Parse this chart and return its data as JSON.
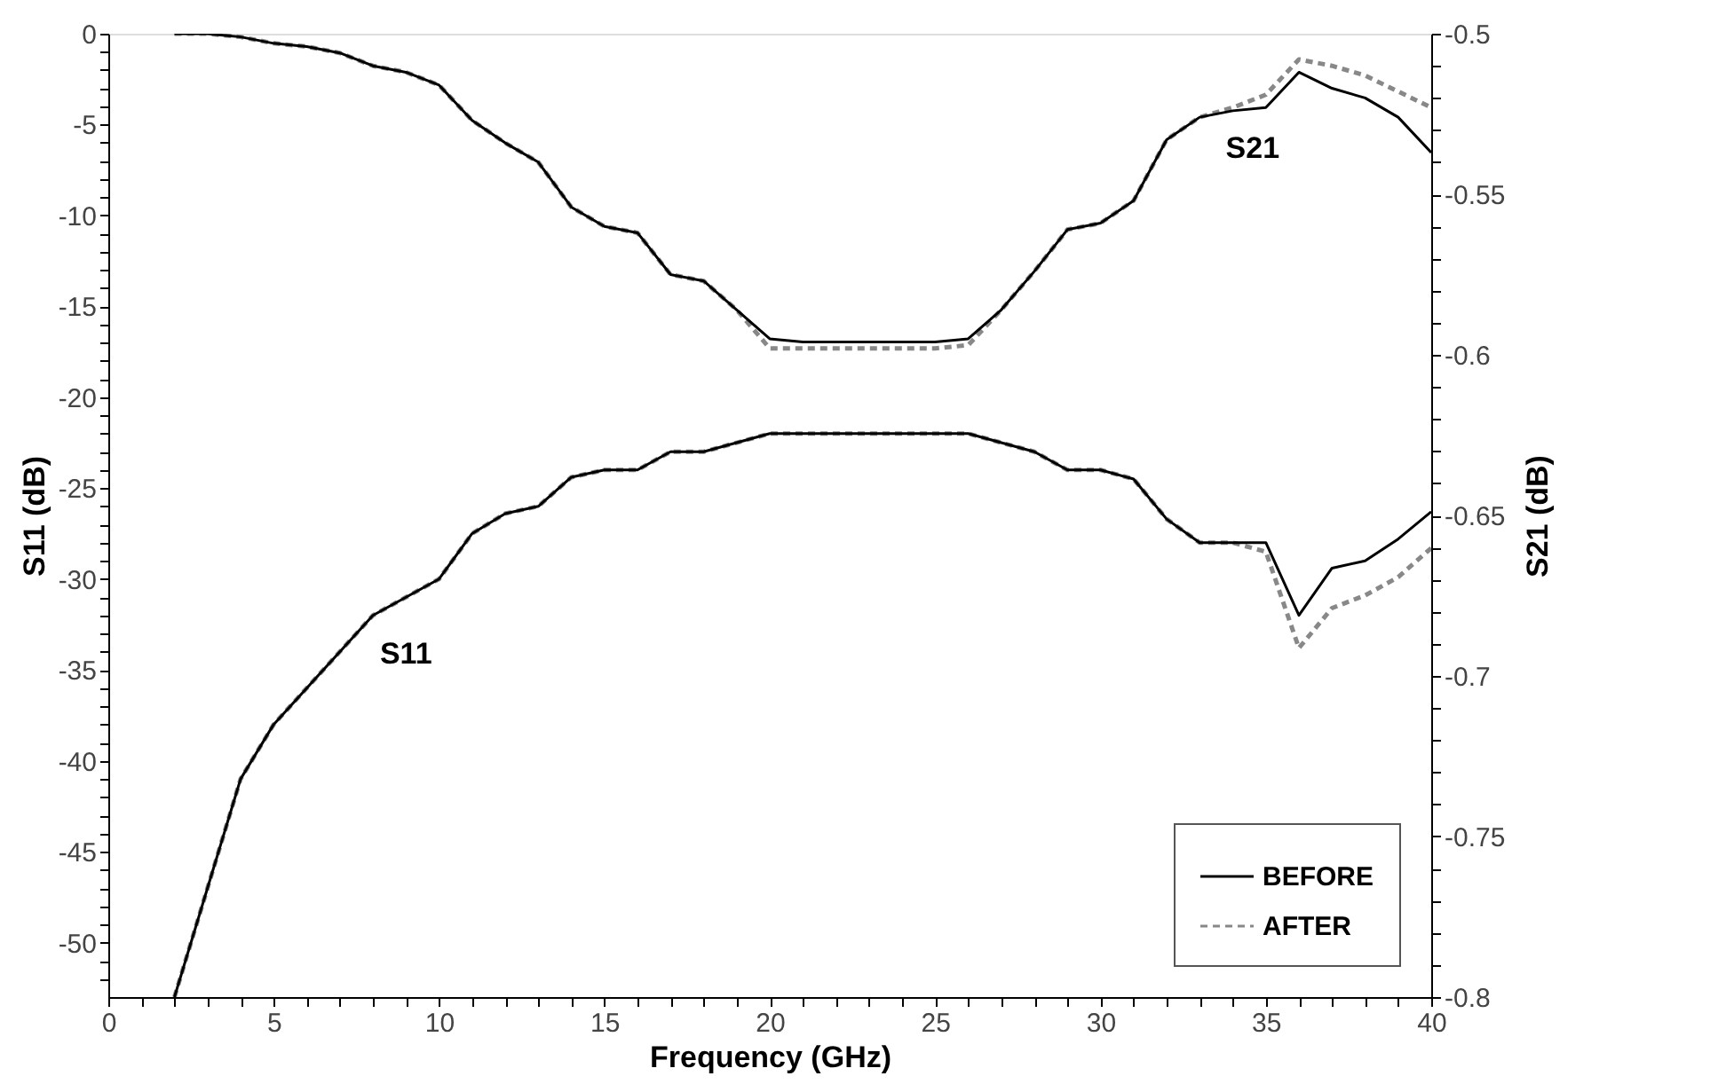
{
  "chart_data": {
    "type": "line",
    "xlabel": "Frequency (GHz)",
    "ylabel": "S11 (dB)",
    "y2label": "S21 (dB)",
    "x": [
      2,
      3,
      4,
      5,
      6,
      7,
      8,
      9,
      10,
      11,
      12,
      13,
      14,
      15,
      16,
      17,
      18,
      19,
      20,
      21,
      22,
      23,
      24,
      25,
      26,
      27,
      28,
      29,
      30,
      31,
      32,
      33,
      34,
      35,
      36,
      37,
      38,
      39,
      40
    ],
    "series": [
      {
        "name": "BEFORE",
        "color": "#000000",
        "line_style": "solid",
        "values": [
          -53,
          -47,
          -41,
          -38,
          -36,
          -34,
          -32,
          -31,
          -30,
          -27.5,
          -26.4,
          -26,
          -24.4,
          -24,
          -24,
          -23,
          -23,
          -22.5,
          -22,
          -22,
          -22,
          -22,
          -22,
          -22,
          -22,
          -22.5,
          -23,
          -24,
          -24,
          -24.5,
          -26.7,
          -28,
          -28,
          -28,
          -32,
          -29.4,
          -29,
          -27.8,
          -26.3
        ]
      },
      {
        "name": "AFTER",
        "color": "#888888",
        "line_style": "dashed",
        "values": [
          -53,
          -47,
          -41,
          -38,
          -36,
          -34,
          -32,
          -31,
          -30,
          -27.5,
          -26.4,
          -26,
          -24.4,
          -24,
          -24,
          -23,
          -23,
          -22.5,
          -22,
          -22,
          -22,
          -22,
          -22,
          -22,
          -22,
          -22.5,
          -23,
          -24,
          -24,
          -24.5,
          -26.7,
          -28,
          -28,
          -28.5,
          -33.8,
          -31.6,
          -30.9,
          -29.9,
          -28.3
        ]
      },
      {
        "color": "#000000",
        "line_style": "solid",
        "axis": "y2",
        "values": [
          -0.5,
          -0.5,
          -0.501,
          -0.503,
          -0.504,
          -0.506,
          -0.51,
          -0.512,
          -0.516,
          -0.527,
          -0.534,
          -0.54,
          -0.554,
          -0.56,
          -0.562,
          -0.575,
          -0.577,
          -0.586,
          -0.595,
          -0.596,
          -0.596,
          -0.596,
          -0.596,
          -0.596,
          -0.595,
          -0.586,
          -0.574,
          -0.561,
          -0.559,
          -0.552,
          -0.533,
          -0.526,
          -0.524,
          -0.523,
          -0.512,
          -0.517,
          -0.52,
          -0.526,
          -0.537
        ]
      },
      {
        "color": "#888888",
        "line_style": "dashed",
        "axis": "y2",
        "values": [
          -0.5,
          -0.5,
          -0.501,
          -0.503,
          -0.504,
          -0.506,
          -0.51,
          -0.512,
          -0.516,
          -0.527,
          -0.534,
          -0.54,
          -0.554,
          -0.56,
          -0.562,
          -0.575,
          -0.577,
          -0.586,
          -0.598,
          -0.598,
          -0.598,
          -0.598,
          -0.598,
          -0.598,
          -0.597,
          -0.586,
          -0.574,
          -0.561,
          -0.559,
          -0.552,
          -0.533,
          -0.526,
          -0.523,
          -0.519,
          -0.508,
          -0.51,
          -0.513,
          -0.518,
          -0.523
        ]
      }
    ],
    "xlim": [
      0,
      40
    ],
    "xticks": [
      0,
      {
        "value": 1,
        "label": null
      },
      {
        "value": 2,
        "label": null
      },
      {
        "value": 3,
        "label": null
      },
      {
        "value": 4,
        "label": null
      },
      5,
      {
        "value": 6,
        "label": null
      },
      {
        "value": 7,
        "label": null
      },
      {
        "value": 8,
        "label": null
      },
      {
        "value": 9,
        "label": null
      },
      10,
      {
        "value": 11,
        "label": null
      },
      {
        "value": 12,
        "label": null
      },
      {
        "value": 13,
        "label": null
      },
      {
        "value": 14,
        "label": null
      },
      15,
      {
        "value": 16,
        "label": null
      },
      {
        "value": 17,
        "label": null
      },
      {
        "value": 18,
        "label": null
      },
      {
        "value": 19,
        "label": null
      },
      20,
      {
        "value": 21,
        "label": null
      },
      {
        "value": 22,
        "label": null
      },
      {
        "value": 23,
        "label": null
      },
      {
        "value": 24,
        "label": null
      },
      25,
      {
        "value": 26,
        "label": null
      },
      {
        "value": 27,
        "label": null
      },
      {
        "value": 28,
        "label": null
      },
      {
        "value": 29,
        "label": null
      },
      30,
      {
        "value": 31,
        "label": null
      },
      {
        "value": 32,
        "label": null
      },
      {
        "value": 33,
        "label": null
      },
      {
        "value": 34,
        "label": null
      },
      35,
      {
        "value": 36,
        "label": null
      },
      {
        "value": 37,
        "label": null
      },
      {
        "value": 38,
        "label": null
      },
      {
        "value": 39,
        "label": null
      },
      40
    ],
    "ylim": [
      -53,
      0
    ],
    "yticks": [
      0,
      {
        "value": -1,
        "label": null
      },
      {
        "value": -2,
        "label": null
      },
      {
        "value": -3,
        "label": null
      },
      {
        "value": -4,
        "label": null
      },
      -5,
      {
        "value": -6,
        "label": null
      },
      {
        "value": -7,
        "label": null
      },
      {
        "value": -8,
        "label": null
      },
      {
        "value": -9,
        "label": null
      },
      -10,
      {
        "value": -11,
        "label": null
      },
      {
        "value": -12,
        "label": null
      },
      {
        "value": -13,
        "label": null
      },
      {
        "value": -14,
        "label": null
      },
      -15,
      {
        "value": -16,
        "label": null
      },
      {
        "value": -17,
        "label": null
      },
      {
        "value": -18,
        "label": null
      },
      {
        "value": -19,
        "label": null
      },
      -20,
      {
        "value": -21,
        "label": null
      },
      {
        "value": -22,
        "label": null
      },
      {
        "value": -23,
        "label": null
      },
      {
        "value": -24,
        "label": null
      },
      -25,
      {
        "value": -26,
        "label": null
      },
      {
        "value": -27,
        "label": null
      },
      {
        "value": -28,
        "label": null
      },
      {
        "value": -29,
        "label": null
      },
      -30,
      {
        "value": -31,
        "label": null
      },
      {
        "value": -32,
        "label": null
      },
      {
        "value": -33,
        "label": null
      },
      {
        "value": -34,
        "label": null
      },
      -35,
      {
        "value": -36,
        "label": null
      },
      {
        "value": -37,
        "label": null
      },
      {
        "value": -38,
        "label": null
      },
      {
        "value": -39,
        "label": null
      },
      -40,
      {
        "value": -41,
        "label": null
      },
      {
        "value": -42,
        "label": null
      },
      {
        "value": -43,
        "label": null
      },
      {
        "value": -44,
        "label": null
      },
      -45,
      {
        "value": -46,
        "label": null
      },
      {
        "value": -47,
        "label": null
      },
      {
        "value": -48,
        "label": null
      },
      {
        "value": -49,
        "label": null
      },
      -50,
      {
        "value": -51,
        "label": null
      },
      {
        "value": -52,
        "label": null
      }
    ],
    "y2lim": [
      -0.8,
      -0.5
    ],
    "y2ticks": [
      -0.5,
      {
        "value": -0.51,
        "label": null
      },
      {
        "value": -0.52,
        "label": null
      },
      {
        "value": -0.53,
        "label": null
      },
      {
        "value": -0.54,
        "label": null
      },
      -0.55,
      {
        "value": -0.56,
        "label": null
      },
      {
        "value": -0.57,
        "label": null
      },
      {
        "value": -0.58,
        "label": null
      },
      {
        "value": -0.59,
        "label": null
      },
      -0.6,
      {
        "value": -0.61,
        "label": null
      },
      {
        "value": -0.62,
        "label": null
      },
      {
        "value": -0.63,
        "label": null
      },
      {
        "value": -0.64,
        "label": null
      },
      -0.65,
      {
        "value": -0.66,
        "label": null
      },
      {
        "value": -0.67,
        "label": null
      },
      {
        "value": -0.68,
        "label": null
      },
      {
        "value": -0.69,
        "label": null
      },
      -0.7,
      {
        "value": -0.71,
        "label": null
      },
      {
        "value": -0.72,
        "label": null
      },
      {
        "value": -0.73,
        "label": null
      },
      {
        "value": -0.74,
        "label": null
      },
      -0.75,
      {
        "value": -0.76,
        "label": null
      },
      {
        "value": -0.77,
        "label": null
      },
      {
        "value": -0.78,
        "label": null
      },
      {
        "value": -0.79,
        "label": null
      },
      -0.8
    ],
    "annotations": [
      "S21",
      "S11"
    ],
    "legend": "bottom right"
  }
}
